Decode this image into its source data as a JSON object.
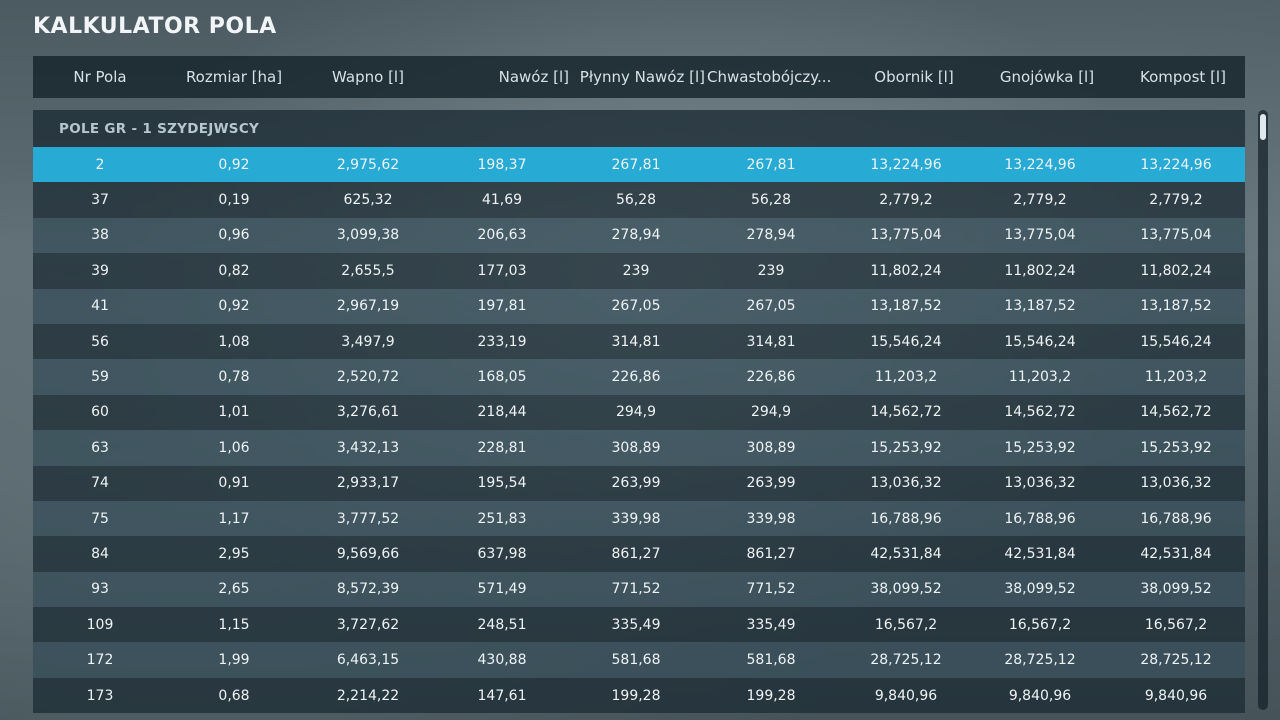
{
  "title": "KALKULATOR POLA",
  "columns": [
    "Nr Pola",
    "Rozmiar [ha]",
    "Wapno [l]",
    "Nawóz [l]",
    "Płynny Nawóz [l]",
    "Chwastobójczy...",
    "Obornik [l]",
    "Gnojówka [l]",
    "Kompost [l]"
  ],
  "group": "POLE GR - 1 SZYDEJWSCY",
  "selected_row_index": 0,
  "rows": [
    [
      "2",
      "0,92",
      "2,975,62",
      "198,37",
      "267,81",
      "267,81",
      "13,224,96",
      "13,224,96",
      "13,224,96"
    ],
    [
      "37",
      "0,19",
      "625,32",
      "41,69",
      "56,28",
      "56,28",
      "2,779,2",
      "2,779,2",
      "2,779,2"
    ],
    [
      "38",
      "0,96",
      "3,099,38",
      "206,63",
      "278,94",
      "278,94",
      "13,775,04",
      "13,775,04",
      "13,775,04"
    ],
    [
      "39",
      "0,82",
      "2,655,5",
      "177,03",
      "239",
      "239",
      "11,802,24",
      "11,802,24",
      "11,802,24"
    ],
    [
      "41",
      "0,92",
      "2,967,19",
      "197,81",
      "267,05",
      "267,05",
      "13,187,52",
      "13,187,52",
      "13,187,52"
    ],
    [
      "56",
      "1,08",
      "3,497,9",
      "233,19",
      "314,81",
      "314,81",
      "15,546,24",
      "15,546,24",
      "15,546,24"
    ],
    [
      "59",
      "0,78",
      "2,520,72",
      "168,05",
      "226,86",
      "226,86",
      "11,203,2",
      "11,203,2",
      "11,203,2"
    ],
    [
      "60",
      "1,01",
      "3,276,61",
      "218,44",
      "294,9",
      "294,9",
      "14,562,72",
      "14,562,72",
      "14,562,72"
    ],
    [
      "63",
      "1,06",
      "3,432,13",
      "228,81",
      "308,89",
      "308,89",
      "15,253,92",
      "15,253,92",
      "15,253,92"
    ],
    [
      "74",
      "0,91",
      "2,933,17",
      "195,54",
      "263,99",
      "263,99",
      "13,036,32",
      "13,036,32",
      "13,036,32"
    ],
    [
      "75",
      "1,17",
      "3,777,52",
      "251,83",
      "339,98",
      "339,98",
      "16,788,96",
      "16,788,96",
      "16,788,96"
    ],
    [
      "84",
      "2,95",
      "9,569,66",
      "637,98",
      "861,27",
      "861,27",
      "42,531,84",
      "42,531,84",
      "42,531,84"
    ],
    [
      "93",
      "2,65",
      "8,572,39",
      "571,49",
      "771,52",
      "771,52",
      "38,099,52",
      "38,099,52",
      "38,099,52"
    ],
    [
      "109",
      "1,15",
      "3,727,62",
      "248,51",
      "335,49",
      "335,49",
      "16,567,2",
      "16,567,2",
      "16,567,2"
    ],
    [
      "172",
      "1,99",
      "6,463,15",
      "430,88",
      "581,68",
      "581,68",
      "28,725,12",
      "28,725,12",
      "28,725,12"
    ],
    [
      "173",
      "0,68",
      "2,214,22",
      "147,61",
      "199,28",
      "199,28",
      "9,840,96",
      "9,840,96",
      "9,840,96"
    ]
  ],
  "colors": {
    "selected_row": "#27aad3",
    "header_bg": "#16242c",
    "row_dark": "#1a2a32",
    "row_light": "#344c58"
  }
}
